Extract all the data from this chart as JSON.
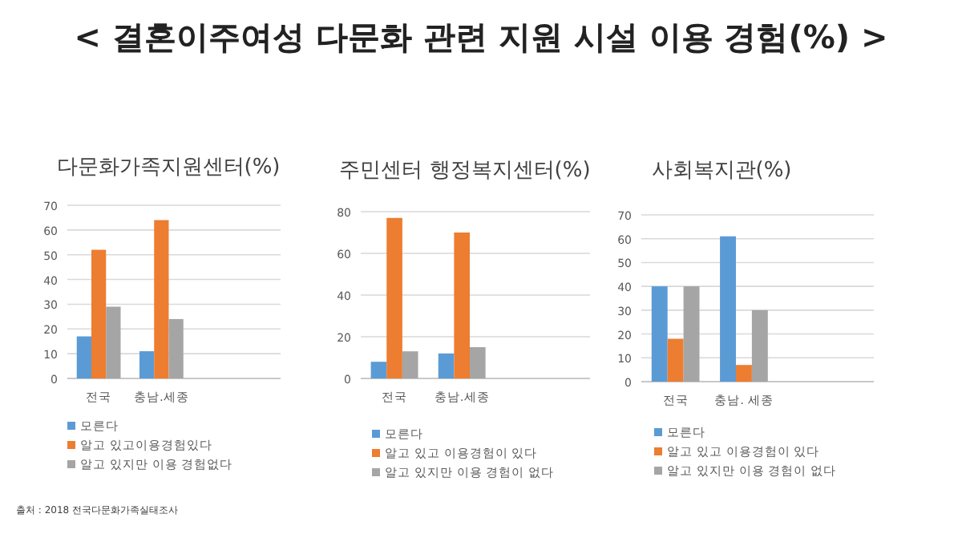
{
  "chart_data": [
    {
      "type": "bar",
      "title": "다문화가족지원센터(%)",
      "categories": [
        "전국",
        "충남.세종"
      ],
      "ylim": [
        0,
        70
      ],
      "yticks": [
        0,
        10,
        20,
        30,
        40,
        50,
        60,
        70
      ],
      "grid": "y",
      "legend": "bottom",
      "annotations": [
        "< 결혼이주여성 다문화 관련 지원 시설 이용 경험(%) >",
        "출처 : 2018 전국다문화가족실태조사"
      ],
      "series": [
        {
          "name": "모른다",
          "color": "#5b9bd5",
          "values": [
            17,
            11
          ]
        },
        {
          "name": "알고 있고이용경험있다",
          "color": "#ed7d31",
          "values": [
            52,
            64
          ]
        },
        {
          "name": "알고 있지만 이용 경험없다",
          "color": "#a5a5a5",
          "values": [
            29,
            24
          ]
        }
      ]
    },
    {
      "type": "bar",
      "title": "주민센터 행정복지센터(%)",
      "categories": [
        "전국",
        "충남.세종"
      ],
      "ylim": [
        0,
        80
      ],
      "yticks": [
        0,
        20,
        40,
        60,
        80
      ],
      "grid": "y",
      "legend": "bottom",
      "series": [
        {
          "name": "모른다",
          "color": "#5b9bd5",
          "values": [
            8,
            12
          ]
        },
        {
          "name": "알고 있고 이용경험이 있다",
          "color": "#ed7d31",
          "values": [
            77,
            70
          ]
        },
        {
          "name": "알고 있지만 이용 경험이 없다",
          "color": "#a5a5a5",
          "values": [
            13,
            15
          ]
        }
      ]
    },
    {
      "type": "bar",
      "title": "사회복지관(%)",
      "categories": [
        "전국",
        "충남. 세종"
      ],
      "ylim": [
        0,
        70
      ],
      "yticks": [
        0,
        10,
        20,
        30,
        40,
        50,
        60,
        70
      ],
      "grid": "y",
      "legend": "bottom",
      "series": [
        {
          "name": "모른다",
          "color": "#5b9bd5",
          "values": [
            40,
            61
          ]
        },
        {
          "name": "알고 있고 이용경험이 있다",
          "color": "#ed7d31",
          "values": [
            18,
            7
          ]
        },
        {
          "name": "알고 있지만 이용 경험이 없다",
          "color": "#a5a5a5",
          "values": [
            40,
            30
          ]
        }
      ]
    }
  ]
}
